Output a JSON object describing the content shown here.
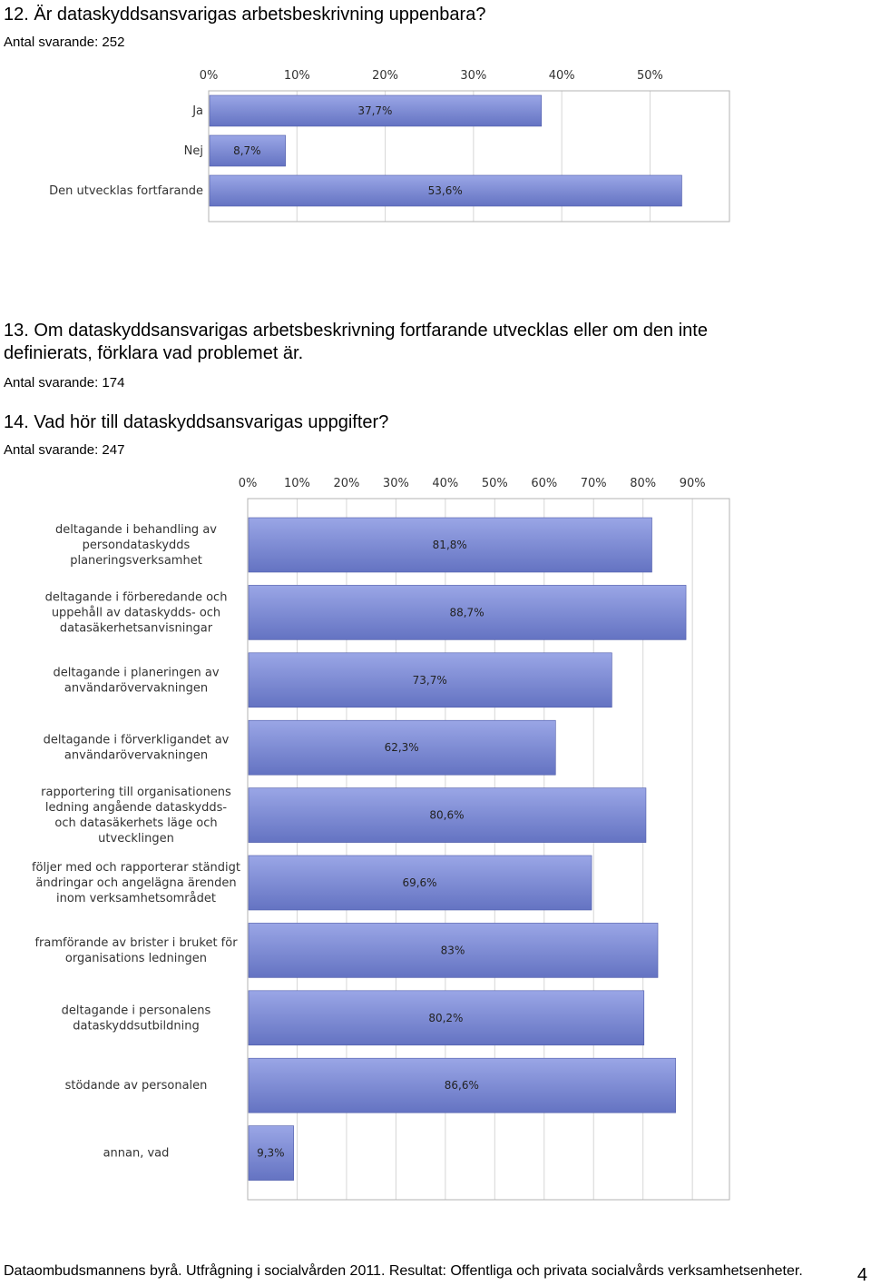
{
  "q12": {
    "title": "12. Är dataskyddsansvarigas arbetsbeskrivning uppenbara?",
    "respondents": "Antal svarande: 252"
  },
  "q13": {
    "title_line1": "13. Om dataskyddsansvarigas arbetsbeskrivning fortfarande utvecklas eller om den inte",
    "title_line2": "definierats, förklara vad problemet är.",
    "respondents": "Antal svarande: 174"
  },
  "q14": {
    "title": "14. Vad hör till dataskyddsansvarigas uppgifter?",
    "respondents": "Antal svarande: 247"
  },
  "footer": {
    "text": "Dataombudsmannens byrå. Utfrågning i socialvården 2011. Resultat: Offentliga och privata socialvårds verksamhetsenheter.",
    "page_number": "4"
  },
  "colors": {
    "bar_top": "#9aa6e6",
    "bar_bottom": "#6473c2",
    "bar_edge": "#4e5aa8",
    "grid": "#d6d6d6",
    "frame": "#b3b3b3"
  },
  "chart_data": [
    {
      "type": "bar",
      "orientation": "horizontal",
      "categories": [
        "Ja",
        "Nej",
        "Den utvecklas fortfarande"
      ],
      "values": [
        37.7,
        8.7,
        53.6
      ],
      "value_labels": [
        "37,7%",
        "8,7%",
        "53,6%"
      ],
      "xlim": [
        0,
        59
      ],
      "ticks": [
        0,
        10,
        20,
        30,
        40,
        50
      ],
      "tick_labels": [
        "0%",
        "10%",
        "20%",
        "30%",
        "40%",
        "50%"
      ],
      "grid": true,
      "axis_position": "top"
    },
    {
      "type": "bar",
      "orientation": "horizontal",
      "categories": [
        [
          "deltagande i behandling av",
          "persondataskydds",
          "planeringsverksamhet"
        ],
        [
          "deltagande i förberedande och",
          "uppehåll av dataskydds- och",
          "datasäkerhetsanvisningar"
        ],
        [
          "deltagande i planeringen av",
          "användarövervakningen"
        ],
        [
          "deltagande i förverkligandet av",
          "användarövervakningen"
        ],
        [
          "rapportering till organisationens",
          "ledning angående dataskydds-",
          "och datasäkerhets läge och",
          "utvecklingen"
        ],
        [
          "följer med och rapporterar ständigt",
          "ändringar och angelägna ärenden",
          "inom verksamhetsområdet"
        ],
        [
          "framförande av brister i bruket för",
          "organisations ledningen"
        ],
        [
          "deltagande i personalens",
          "dataskyddsutbildning"
        ],
        [
          "stödande av personalen"
        ],
        [
          "annan, vad"
        ]
      ],
      "values": [
        81.8,
        88.7,
        73.7,
        62.3,
        80.6,
        69.6,
        83,
        80.2,
        86.6,
        9.3
      ],
      "value_labels": [
        "81,8%",
        "88,7%",
        "73,7%",
        "62,3%",
        "80,6%",
        "69,6%",
        "83%",
        "80,2%",
        "86,6%",
        "9,3%"
      ],
      "xlim": [
        0,
        97.5
      ],
      "ticks": [
        0,
        10,
        20,
        30,
        40,
        50,
        60,
        70,
        80,
        90
      ],
      "tick_labels": [
        "0%",
        "10%",
        "20%",
        "30%",
        "40%",
        "50%",
        "60%",
        "70%",
        "80%",
        "90%"
      ],
      "grid": true,
      "axis_position": "top"
    }
  ]
}
